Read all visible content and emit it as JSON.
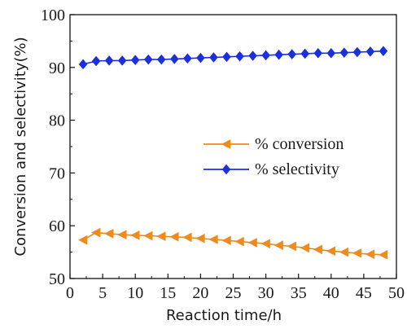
{
  "chart_data": {
    "type": "line",
    "xlabel": "Reaction time/h",
    "ylabel": "Conversion and selectivity(%)",
    "xlim": [
      0,
      50
    ],
    "ylim": [
      50,
      100
    ],
    "x_ticks": [
      "0",
      "5",
      "10",
      "15",
      "20",
      "25",
      "30",
      "35",
      "40",
      "45",
      "50"
    ],
    "y_ticks": [
      "50",
      "60",
      "70",
      "80",
      "90",
      "100"
    ],
    "grid": false,
    "legend_position": "center-right",
    "x": [
      2,
      4,
      6,
      8,
      10,
      12,
      14,
      16,
      18,
      20,
      22,
      24,
      26,
      28,
      30,
      32,
      34,
      36,
      38,
      40,
      42,
      44,
      46,
      48
    ],
    "series": [
      {
        "name": "% conversion",
        "marker": "left-triangle",
        "color": "#F08A1C",
        "values": [
          57.3,
          58.7,
          58.5,
          58.3,
          58.2,
          58.1,
          58.0,
          57.9,
          57.8,
          57.6,
          57.4,
          57.2,
          57.0,
          56.8,
          56.6,
          56.3,
          56.1,
          55.8,
          55.5,
          55.2,
          55.0,
          54.8,
          54.6,
          54.5
        ]
      },
      {
        "name": "% selectivity",
        "marker": "diamond",
        "color": "#1A2FE0",
        "values": [
          90.6,
          91.2,
          91.3,
          91.3,
          91.4,
          91.5,
          91.5,
          91.6,
          91.7,
          91.8,
          91.9,
          92.0,
          92.1,
          92.2,
          92.3,
          92.4,
          92.5,
          92.6,
          92.7,
          92.7,
          92.8,
          92.9,
          93.0,
          93.1
        ]
      }
    ]
  }
}
